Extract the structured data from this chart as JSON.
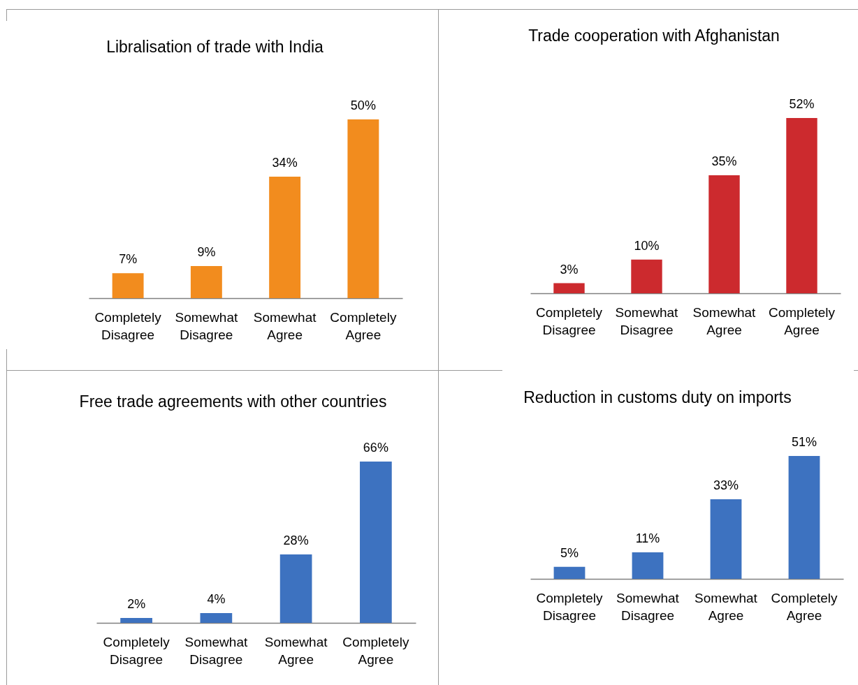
{
  "chart_data": [
    {
      "type": "bar",
      "title": "Libralisation of trade with India",
      "categories": [
        "Completely Disagree",
        "Somewhat Disagree",
        "Somewhat Agree",
        "Completely Agree"
      ],
      "values": [
        7,
        9,
        34,
        50
      ],
      "value_labels": [
        "7%",
        "9%",
        "34%",
        "50%"
      ],
      "color": "#f28c1e"
    },
    {
      "type": "bar",
      "title": "Trade cooperation with Afghanistan",
      "categories": [
        "Completely Disagree",
        "Somewhat Disagree",
        "Somewhat Agree",
        "Completely Agree"
      ],
      "values": [
        3,
        10,
        35,
        52
      ],
      "value_labels": [
        "3%",
        "10%",
        "35%",
        "52%"
      ],
      "color": "#cc2a2e"
    },
    {
      "type": "bar",
      "title": "Free trade agreements with other countries",
      "categories": [
        "Completely Disagree",
        "Somewhat Disagree",
        "Somewhat Agree",
        "Completely Agree"
      ],
      "values": [
        2,
        4,
        28,
        66
      ],
      "value_labels": [
        "2%",
        "4%",
        "28%",
        "66%"
      ],
      "color": "#3d72c0"
    },
    {
      "type": "bar",
      "title": "Reduction in customs duty on imports",
      "categories": [
        "Completely Disagree",
        "Somewhat Disagree",
        "Somewhat Agree",
        "Completely Agree"
      ],
      "values": [
        5,
        11,
        33,
        51
      ],
      "value_labels": [
        "5%",
        "11%",
        "33%",
        "51%"
      ],
      "color": "#3d72c0"
    }
  ]
}
